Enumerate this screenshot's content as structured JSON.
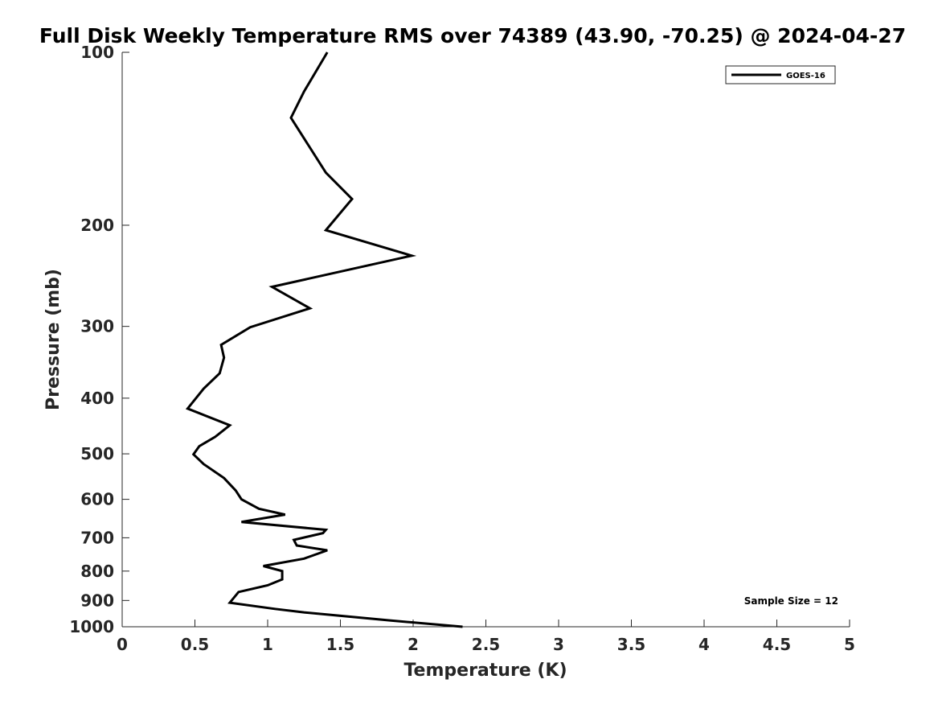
{
  "chart_data": {
    "type": "line",
    "title": "Full Disk Weekly Temperature RMS over 74389 (43.90, -70.25) @ 2024-04-27",
    "xlabel": "Temperature (K)",
    "ylabel": "Pressure (mb)",
    "xlim": [
      0,
      5
    ],
    "ylim": [
      100,
      1000
    ],
    "yscale": "log",
    "y_reversed": true,
    "grid": false,
    "legend_placement": "top-right",
    "xticks": [
      0,
      0.5,
      1,
      1.5,
      2,
      2.5,
      3,
      3.5,
      4,
      4.5,
      5
    ],
    "xtick_labels": [
      "0",
      "0.5",
      "1",
      "1.5",
      "2",
      "2.5",
      "3",
      "3.5",
      "4",
      "4.5",
      "5"
    ],
    "yticks": [
      100,
      200,
      300,
      400,
      500,
      600,
      700,
      800,
      900,
      1000
    ],
    "ytick_labels": [
      "100",
      "200",
      "300",
      "400",
      "500",
      "600",
      "700",
      "800",
      "900",
      "1000"
    ],
    "series": [
      {
        "name": "GOES-16",
        "color": "#000000",
        "x": [
          1.41,
          1.25,
          1.16,
          1.4,
          1.58,
          1.4,
          1.99,
          1.03,
          1.29,
          0.88,
          0.68,
          0.7,
          0.67,
          0.56,
          0.45,
          0.74,
          0.64,
          0.53,
          0.49,
          0.56,
          0.7,
          0.78,
          0.82,
          0.94,
          1.12,
          0.82,
          1.4,
          1.38,
          1.18,
          1.2,
          1.41,
          1.25,
          0.97,
          1.1,
          1.1,
          1.0,
          0.8,
          0.74,
          1.05,
          1.25,
          1.84,
          2.34
        ],
        "y": [
          100,
          117,
          130,
          162,
          180,
          204,
          226,
          256,
          279,
          301,
          323,
          340,
          362,
          385,
          417,
          446,
          467,
          485,
          501,
          521,
          551,
          579,
          600,
          623,
          638,
          657,
          678,
          687,
          706,
          722,
          736,
          761,
          784,
          800,
          827,
          847,
          870,
          908,
          931,
          944,
          975,
          1000
        ]
      }
    ],
    "annotations": [
      "Sample Size = 12"
    ]
  }
}
